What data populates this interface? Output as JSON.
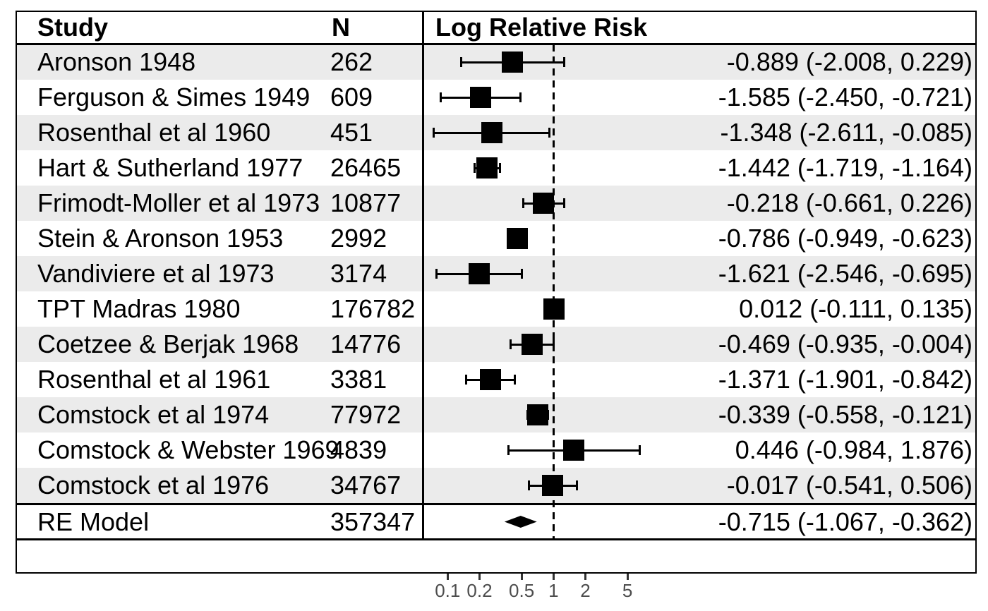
{
  "header": {
    "study": "Study",
    "n": "N",
    "plot": "Log Relative Risk"
  },
  "colors": {
    "stripe": "#ebebeb",
    "ink": "#000000",
    "tick_mark": "#333333",
    "tick_label": "#4d4d4d"
  },
  "chart_data": {
    "type": "forest",
    "title": "Log Relative Risk",
    "columns": [
      "Study",
      "N",
      "Log Relative Risk"
    ],
    "x_scale": "log (relative risk), effect values are natural-log relative risks",
    "x_ticks": [
      0.1,
      0.2,
      0.5,
      1,
      2,
      5
    ],
    "x_tick_labels": [
      "0.1",
      "0.2",
      "0.5",
      "1",
      "2",
      "5"
    ],
    "reference_line_rr": 1,
    "studies": [
      {
        "study": "Aronson 1948",
        "n": "262",
        "log_rr": -0.889,
        "ci_low": -2.008,
        "ci_high": 0.229,
        "label": "-0.889 (-2.008, 0.229)"
      },
      {
        "study": "Ferguson & Simes 1949",
        "n": "609",
        "log_rr": -1.585,
        "ci_low": -2.45,
        "ci_high": -0.721,
        "label": "-1.585 (-2.450, -0.721)"
      },
      {
        "study": "Rosenthal et al 1960",
        "n": "451",
        "log_rr": -1.348,
        "ci_low": -2.611,
        "ci_high": -0.085,
        "label": "-1.348 (-2.611, -0.085)"
      },
      {
        "study": "Hart & Sutherland 1977",
        "n": "26465",
        "log_rr": -1.442,
        "ci_low": -1.719,
        "ci_high": -1.164,
        "label": "-1.442 (-1.719, -1.164)"
      },
      {
        "study": "Frimodt-Moller et al 1973",
        "n": "10877",
        "log_rr": -0.218,
        "ci_low": -0.661,
        "ci_high": 0.226,
        "label": "-0.218 (-0.661, 0.226)"
      },
      {
        "study": "Stein & Aronson 1953",
        "n": "2992",
        "log_rr": -0.786,
        "ci_low": -0.949,
        "ci_high": -0.623,
        "label": "-0.786 (-0.949, -0.623)"
      },
      {
        "study": "Vandiviere et al 1973",
        "n": "3174",
        "log_rr": -1.621,
        "ci_low": -2.546,
        "ci_high": -0.695,
        "label": "-1.621 (-2.546, -0.695)"
      },
      {
        "study": "TPT Madras 1980",
        "n": "176782",
        "log_rr": 0.012,
        "ci_low": -0.111,
        "ci_high": 0.135,
        "label": "0.012 (-0.111, 0.135)"
      },
      {
        "study": "Coetzee & Berjak 1968",
        "n": "14776",
        "log_rr": -0.469,
        "ci_low": -0.935,
        "ci_high": -0.004,
        "label": "-0.469 (-0.935, -0.004)"
      },
      {
        "study": "Rosenthal et al 1961",
        "n": "3381",
        "log_rr": -1.371,
        "ci_low": -1.901,
        "ci_high": -0.842,
        "label": "-1.371 (-1.901, -0.842)"
      },
      {
        "study": "Comstock et al 1974",
        "n": "77972",
        "log_rr": -0.339,
        "ci_low": -0.558,
        "ci_high": -0.121,
        "label": "-0.339 (-0.558, -0.121)"
      },
      {
        "study": "Comstock & Webster 1969",
        "n": "4839",
        "log_rr": 0.446,
        "ci_low": -0.984,
        "ci_high": 1.876,
        "label": "0.446 (-0.984, 1.876)"
      },
      {
        "study": "Comstock et al 1976",
        "n": "34767",
        "log_rr": -0.017,
        "ci_low": -0.541,
        "ci_high": 0.506,
        "label": "-0.017 (-0.541, 0.506)"
      }
    ],
    "summary": {
      "study": "RE Model",
      "n": "357347",
      "log_rr": -0.715,
      "ci_low": -1.067,
      "ci_high": -0.362,
      "label": "-0.715 (-1.067, -0.362)"
    }
  }
}
